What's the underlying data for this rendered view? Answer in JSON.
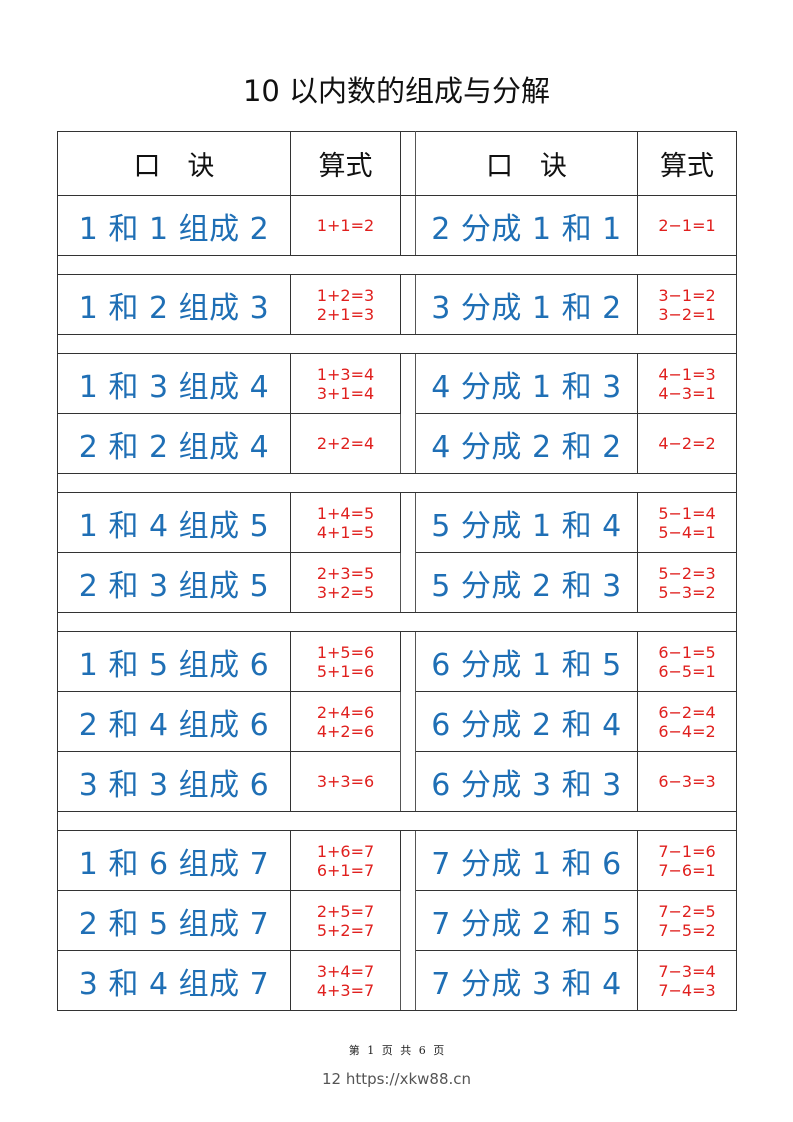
{
  "title": "10 以内数的组成与分解",
  "header": {
    "left_rhyme": "口　诀",
    "left_formula": "算式",
    "right_rhyme": "口　诀",
    "right_formula": "算式"
  },
  "groups": [
    [
      {
        "l": "1 和 1 组成 2",
        "lf": [
          "1+1=2"
        ],
        "r": "2 分成 1 和 1",
        "rf": [
          "2−1=1"
        ]
      }
    ],
    [
      {
        "l": "1 和 2 组成 3",
        "lf": [
          "1+2=3",
          "2+1=3"
        ],
        "r": "3 分成 1 和 2",
        "rf": [
          "3−1=2",
          "3−2=1"
        ]
      }
    ],
    [
      {
        "l": "1 和 3 组成 4",
        "lf": [
          "1+3=4",
          "3+1=4"
        ],
        "r": "4 分成 1 和 3",
        "rf": [
          "4−1=3",
          "4−3=1"
        ]
      },
      {
        "l": "2 和 2 组成 4",
        "lf": [
          "2+2=4"
        ],
        "r": "4 分成 2 和 2",
        "rf": [
          "4−2=2"
        ]
      }
    ],
    [
      {
        "l": "1 和 4 组成 5",
        "lf": [
          "1+4=5",
          "4+1=5"
        ],
        "r": "5 分成 1 和 4",
        "rf": [
          "5−1=4",
          "5−4=1"
        ]
      },
      {
        "l": "2 和 3 组成 5",
        "lf": [
          "2+3=5",
          "3+2=5"
        ],
        "r": "5 分成 2 和 3",
        "rf": [
          "5−2=3",
          "5−3=2"
        ]
      }
    ],
    [
      {
        "l": "1 和 5 组成 6",
        "lf": [
          "1+5=6",
          "5+1=6"
        ],
        "r": "6 分成 1 和 5",
        "rf": [
          "6−1=5",
          "6−5=1"
        ]
      },
      {
        "l": "2 和 4 组成 6",
        "lf": [
          "2+4=6",
          "4+2=6"
        ],
        "r": "6 分成 2 和 4",
        "rf": [
          "6−2=4",
          "6−4=2"
        ]
      },
      {
        "l": "3 和 3 组成 6",
        "lf": [
          "3+3=6"
        ],
        "r": "6 分成 3 和 3",
        "rf": [
          "6−3=3"
        ]
      }
    ],
    [
      {
        "l": "1 和 6 组成 7",
        "lf": [
          "1+6=7",
          "6+1=7"
        ],
        "r": "7 分成 1 和 6",
        "rf": [
          "7−1=6",
          "7−6=1"
        ]
      },
      {
        "l": "2 和 5 组成 7",
        "lf": [
          "2+5=7",
          "5+2=7"
        ],
        "r": "7 分成 2 和 5",
        "rf": [
          "7−2=5",
          "7−5=2"
        ]
      },
      {
        "l": "3 和 4 组成 7",
        "lf": [
          "3+4=7",
          "4+3=7"
        ],
        "r": "7 分成 3 和 4",
        "rf": [
          "7−3=4",
          "7−4=3"
        ]
      }
    ]
  ],
  "footer": "第 1 页 共 6 页",
  "watermark": "12 https://xkw88.cn",
  "colors": {
    "rhyme": "#1f6fb5",
    "formula": "#e0201e"
  }
}
